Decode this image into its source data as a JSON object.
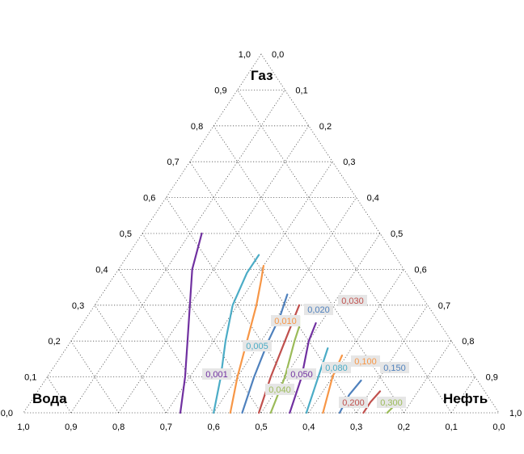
{
  "chart_data": {
    "type": "line",
    "subtype": "ternary",
    "title": "",
    "corners": {
      "top": "Газ",
      "left": "Вода",
      "right": "Нефть"
    },
    "axes": {
      "gas": {
        "ticks_left_edge": [
          "1,0",
          "0,9",
          "0,8",
          "0,7",
          "0,6",
          "0,5",
          "0,4",
          "0,3",
          "0,2",
          "0,1",
          "0,0"
        ],
        "range": [
          0,
          1
        ]
      },
      "water": {
        "ticks_bottom": [
          "1,0",
          "0,9",
          "0,8",
          "0,7",
          "0,6",
          "0,5",
          "0,4",
          "0,3",
          "0,2",
          "0,1",
          "0,0"
        ],
        "range": [
          0,
          1
        ]
      },
      "oil": {
        "ticks_right_edge": [
          "0,0",
          "0,1",
          "0,2",
          "0,3",
          "0,4",
          "0,5",
          "0,6",
          "0,7",
          "0,8",
          "0,9",
          "1,0"
        ],
        "range": [
          0,
          1
        ]
      }
    },
    "grid": true,
    "grid_step": 0.1,
    "series": [
      {
        "name": "0,001",
        "color": "#7030a0",
        "label_color": "#7030a0",
        "points": [
          {
            "gas": 0.0,
            "water": 0.67
          },
          {
            "gas": 0.1,
            "water": 0.61
          },
          {
            "gas": 0.2,
            "water": 0.555
          },
          {
            "gas": 0.3,
            "water": 0.5
          },
          {
            "gas": 0.4,
            "water": 0.445
          },
          {
            "gas": 0.5,
            "water": 0.375
          }
        ]
      },
      {
        "name": "0,005",
        "color": "#4bacc6",
        "label_color": "#4bacc6",
        "points": [
          {
            "gas": 0.0,
            "water": 0.6
          },
          {
            "gas": 0.1,
            "water": 0.535
          },
          {
            "gas": 0.2,
            "water": 0.475
          },
          {
            "gas": 0.3,
            "water": 0.41
          },
          {
            "gas": 0.39,
            "water": 0.335
          },
          {
            "gas": 0.44,
            "water": 0.285
          }
        ]
      },
      {
        "name": "0,010",
        "color": "#f79646",
        "label_color": "#f79646",
        "points": [
          {
            "gas": 0.0,
            "water": 0.565
          },
          {
            "gas": 0.1,
            "water": 0.5
          },
          {
            "gas": 0.2,
            "water": 0.43
          },
          {
            "gas": 0.3,
            "water": 0.36
          },
          {
            "gas": 0.37,
            "water": 0.315
          },
          {
            "gas": 0.41,
            "water": 0.29
          }
        ]
      },
      {
        "name": "0,020",
        "color": "#4f81bd",
        "label_color": "#4f81bd",
        "points": [
          {
            "gas": 0.0,
            "water": 0.54
          },
          {
            "gas": 0.1,
            "water": 0.465
          },
          {
            "gas": 0.2,
            "water": 0.385
          },
          {
            "gas": 0.27,
            "water": 0.325
          },
          {
            "gas": 0.33,
            "water": 0.28
          }
        ]
      },
      {
        "name": "0,030",
        "color": "#c0504d",
        "label_color": "#c0504d",
        "points": [
          {
            "gas": 0.0,
            "water": 0.505
          },
          {
            "gas": 0.1,
            "water": 0.43
          },
          {
            "gas": 0.2,
            "water": 0.35
          },
          {
            "gas": 0.3,
            "water": 0.27
          }
        ]
      },
      {
        "name": "0,040",
        "color": "#9bbb59",
        "label_color": "#9bbb59",
        "points": [
          {
            "gas": 0.0,
            "water": 0.48
          },
          {
            "gas": 0.1,
            "water": 0.4
          },
          {
            "gas": 0.2,
            "water": 0.33
          },
          {
            "gas": 0.24,
            "water": 0.3
          },
          {
            "gas": 0.27,
            "water": 0.285
          }
        ]
      },
      {
        "name": "0,050",
        "color": "#7030a0",
        "label_color": "#7030a0",
        "points": [
          {
            "gas": 0.0,
            "water": 0.44
          },
          {
            "gas": 0.1,
            "water": 0.365
          },
          {
            "gas": 0.2,
            "water": 0.3
          },
          {
            "gas": 0.25,
            "water": 0.26
          }
        ]
      },
      {
        "name": "0,080",
        "color": "#4bacc6",
        "label_color": "#4bacc6",
        "points": [
          {
            "gas": 0.0,
            "water": 0.405
          },
          {
            "gas": 0.1,
            "water": 0.33
          },
          {
            "gas": 0.18,
            "water": 0.27
          }
        ]
      },
      {
        "name": "0,100",
        "color": "#f79646",
        "label_color": "#f79646",
        "points": [
          {
            "gas": 0.0,
            "water": 0.37
          },
          {
            "gas": 0.1,
            "water": 0.3
          },
          {
            "gas": 0.16,
            "water": 0.25
          }
        ]
      },
      {
        "name": "0,150",
        "color": "#4f81bd",
        "label_color": "#4f81bd",
        "points": [
          {
            "gas": 0.0,
            "water": 0.335
          },
          {
            "gas": 0.05,
            "water": 0.29
          },
          {
            "gas": 0.09,
            "water": 0.245
          }
        ]
      },
      {
        "name": "0,200",
        "color": "#c0504d",
        "label_color": "#c0504d",
        "points": [
          {
            "gas": 0.0,
            "water": 0.285
          },
          {
            "gas": 0.03,
            "water": 0.255
          },
          {
            "gas": 0.06,
            "water": 0.22
          }
        ]
      },
      {
        "name": "0,300",
        "color": "#9bbb59",
        "label_color": "#9bbb59",
        "points": [
          {
            "gas": 0.0,
            "water": 0.235
          },
          {
            "gas": 0.02,
            "water": 0.21
          },
          {
            "gas": 0.04,
            "water": 0.185
          }
        ]
      }
    ]
  }
}
